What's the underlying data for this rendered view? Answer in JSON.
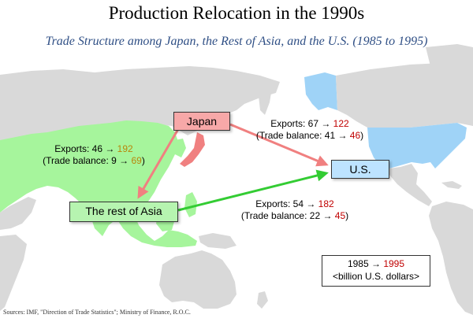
{
  "title": "Production Relocation in the 1990s",
  "subtitle": "Trade Structure among Japan, the Rest of Asia, and the U.S. (1985 to 1995)",
  "nodes": {
    "japan": "Japan",
    "us": "U.S.",
    "asia": "The rest of Asia"
  },
  "flows": {
    "japan_to_asia": {
      "exports_prefix": "Exports: ",
      "exports_1985": "46",
      "exports_1995": "192",
      "balance_prefix": "(Trade balance: ",
      "balance_1985": "9",
      "balance_1995": "69",
      "balance_suffix": ")"
    },
    "japan_to_us": {
      "exports_prefix": "Exports: ",
      "exports_1985": "67",
      "exports_1995": "122",
      "balance_prefix": "(Trade balance: ",
      "balance_1985": "41",
      "balance_1995": "46",
      "balance_suffix": ")"
    },
    "asia_to_us": {
      "exports_prefix": "Exports: ",
      "exports_1985": "54",
      "exports_1995": "182",
      "balance_prefix": "(Trade balance: ",
      "balance_1985": "22",
      "balance_1995": "45",
      "balance_suffix": ")"
    }
  },
  "arrow_glyph": " → ",
  "legend": {
    "year_1985": "1985",
    "year_1995": "1995",
    "unit": "<billion U.S. dollars>"
  },
  "source": "Sources: IMF, \"Direction of Trade Statistics\"; Ministry of Finance, R.O.C.",
  "colors": {
    "land": "#d9d9d9",
    "asia_highlight": "#a6f59c",
    "us_highlight": "#9fd3f7",
    "japan_highlight": "#f08080",
    "arrow_japan": "#f08080",
    "arrow_asia": "#33cc33"
  }
}
